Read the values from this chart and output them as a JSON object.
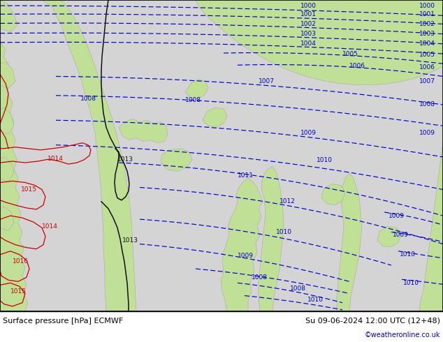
{
  "title_left": "Surface pressure [hPa] ECMWF",
  "title_right": "Su 09-06-2024 12:00 UTC (12+48)",
  "credit": "©weatheronline.co.uk",
  "bg_color": "#d8d8d8",
  "land_color": "#c8e8a0",
  "sea_color": "#d0d0d0",
  "isobar_color_blue": "#0000cc",
  "isobar_color_black": "#111111",
  "isobar_color_red": "#cc0000",
  "figsize": [
    6.34,
    4.9
  ],
  "dpi": 100,
  "land_edge": "#aaaaaa",
  "land_green": "#c0e096",
  "land_bright_green": "#a8d880"
}
